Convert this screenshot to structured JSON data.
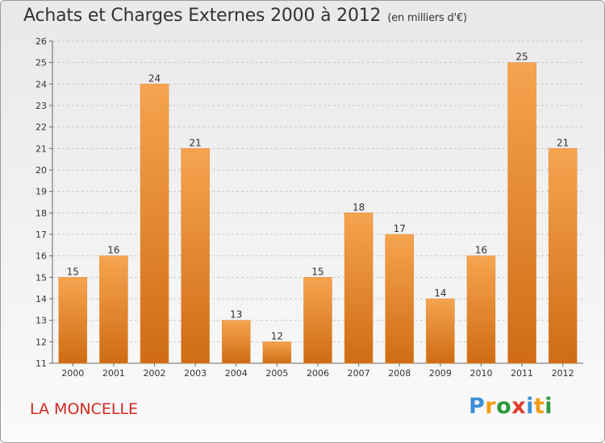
{
  "header": {
    "title": "Achats et Charges Externes 2000 à 2012",
    "unit": "(en milliers d'€)"
  },
  "place": "LA MONCELLE",
  "logo": {
    "text": "Proxiti",
    "letters": [
      {
        "char": "P",
        "color": "#3b8fd6"
      },
      {
        "char": "r",
        "color": "#f39c12"
      },
      {
        "char": "o",
        "color": "#2c9a3c"
      },
      {
        "char": "x",
        "color": "#e03a2f"
      },
      {
        "char": "i",
        "color": "#3b8fd6"
      },
      {
        "char": "t",
        "color": "#f39c12"
      },
      {
        "char": "i",
        "color": "#2c9a3c"
      }
    ]
  },
  "chart_data": {
    "type": "bar",
    "categories": [
      "2000",
      "2001",
      "2002",
      "2003",
      "2004",
      "2005",
      "2006",
      "2007",
      "2008",
      "2009",
      "2010",
      "2011",
      "2012"
    ],
    "values": [
      15,
      16,
      24,
      21,
      13,
      12,
      15,
      18,
      17,
      14,
      16,
      25,
      21
    ],
    "ylim": [
      11,
      26
    ],
    "yticks": [
      11,
      12,
      13,
      14,
      15,
      16,
      17,
      18,
      19,
      20,
      21,
      22,
      23,
      24,
      25,
      26
    ],
    "grid": true,
    "bar_color": "#f0902e"
  }
}
